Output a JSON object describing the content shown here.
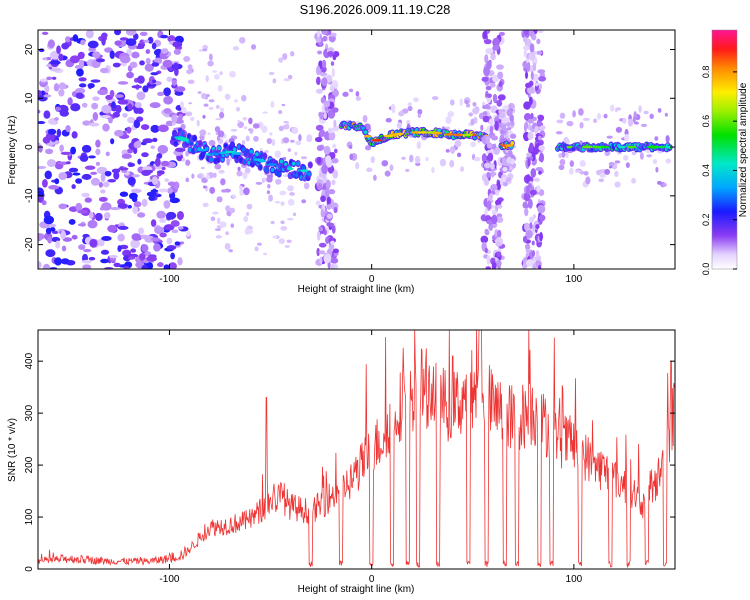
{
  "chart_data": [
    {
      "type": "heatmap",
      "title": "S196.2026.009.11.19.C28",
      "xlabel": "Height of straight line (km)",
      "ylabel": "Frequency (Hz)",
      "xlim": [
        -165,
        150
      ],
      "ylim": [
        -25,
        24
      ],
      "xticks": [
        -100,
        0,
        100
      ],
      "yticks": [
        -20,
        -10,
        0,
        10,
        20
      ],
      "colorbar": {
        "label": "Normalized spectral amplitude",
        "range": [
          0.0,
          0.97
        ],
        "ticks": [
          0.0,
          0.2,
          0.4,
          0.6,
          0.8
        ],
        "tick_labels": [
          "0.0",
          "0.2",
          "0.4",
          "0.6",
          "0.8"
        ]
      },
      "features": [
        {
          "name": "noise-field",
          "x_range": [
            -165,
            -93
          ],
          "f_range": [
            -25,
            24
          ],
          "amplitude": 0.2
        },
        {
          "name": "descending-track",
          "x": [
            -98,
            -90,
            -80,
            -70,
            -60,
            -50,
            -40,
            -30
          ],
          "f": [
            2.5,
            1.0,
            -1.5,
            -1.0,
            -2.0,
            -3.5,
            -4.5,
            -5.0
          ],
          "amplitude": 0.4
        },
        {
          "name": "broadband-stripe-1",
          "x_center": -22,
          "amplitude": 0.15
        },
        {
          "name": "track-2",
          "x": [
            -15,
            -5,
            0,
            10,
            20,
            30,
            40,
            50,
            57
          ],
          "f": [
            4.5,
            4.0,
            1.0,
            2.5,
            3.0,
            3.0,
            2.5,
            2.5,
            2.0
          ],
          "amplitude": 0.8
        },
        {
          "name": "broadband-stripe-2",
          "x_center": 60,
          "amplitude": 0.15
        },
        {
          "name": "track-3",
          "x": [
            64,
            70
          ],
          "f": [
            0.3,
            0.3
          ],
          "amplitude": 0.85
        },
        {
          "name": "broadband-stripe-3",
          "x_center": 80,
          "amplitude": 0.15
        },
        {
          "name": "track-4",
          "x": [
            92,
            100,
            110,
            120,
            130,
            140,
            148
          ],
          "f": [
            0,
            0,
            0,
            0,
            0,
            0,
            0
          ],
          "amplitude": 0.55
        }
      ]
    },
    {
      "type": "line",
      "xlabel": "Height of straight line (km)",
      "ylabel": "SNR (10 * v/v)",
      "xlim": [
        -165,
        150
      ],
      "ylim": [
        0,
        460
      ],
      "xticks": [
        -100,
        0,
        100
      ],
      "yticks": [
        0,
        100,
        200,
        300,
        400
      ],
      "color": "#ee3333",
      "x": [
        -165,
        -150,
        -130,
        -110,
        -100,
        -92,
        -85,
        -80,
        -70,
        -60,
        -50,
        -45,
        -40,
        -35,
        -30,
        -20,
        -15,
        -10,
        -5,
        0,
        5,
        10,
        15,
        20,
        25,
        30,
        35,
        40,
        45,
        50,
        55,
        60,
        65,
        70,
        75,
        80,
        85,
        90,
        95,
        100,
        105,
        110,
        115,
        120,
        125,
        130,
        135,
        140,
        145,
        150
      ],
      "y": [
        15,
        20,
        15,
        15,
        20,
        30,
        60,
        80,
        85,
        95,
        130,
        140,
        120,
        115,
        110,
        140,
        155,
        170,
        200,
        230,
        250,
        295,
        320,
        340,
        350,
        345,
        320,
        310,
        330,
        350,
        350,
        310,
        300,
        290,
        295,
        300,
        280,
        260,
        245,
        240,
        220,
        200,
        190,
        175,
        160,
        145,
        120,
        160,
        210,
        320
      ],
      "dropouts_x": [
        -30,
        -15,
        0,
        10,
        18,
        23,
        33,
        48,
        57,
        66,
        72,
        83,
        89,
        103,
        118,
        127,
        136,
        145
      ],
      "spikes": [
        {
          "x": -52,
          "y": 330
        },
        {
          "x": 40,
          "y": 410
        },
        {
          "x": 54,
          "y": 460
        },
        {
          "x": 148,
          "y": 400
        }
      ]
    }
  ]
}
